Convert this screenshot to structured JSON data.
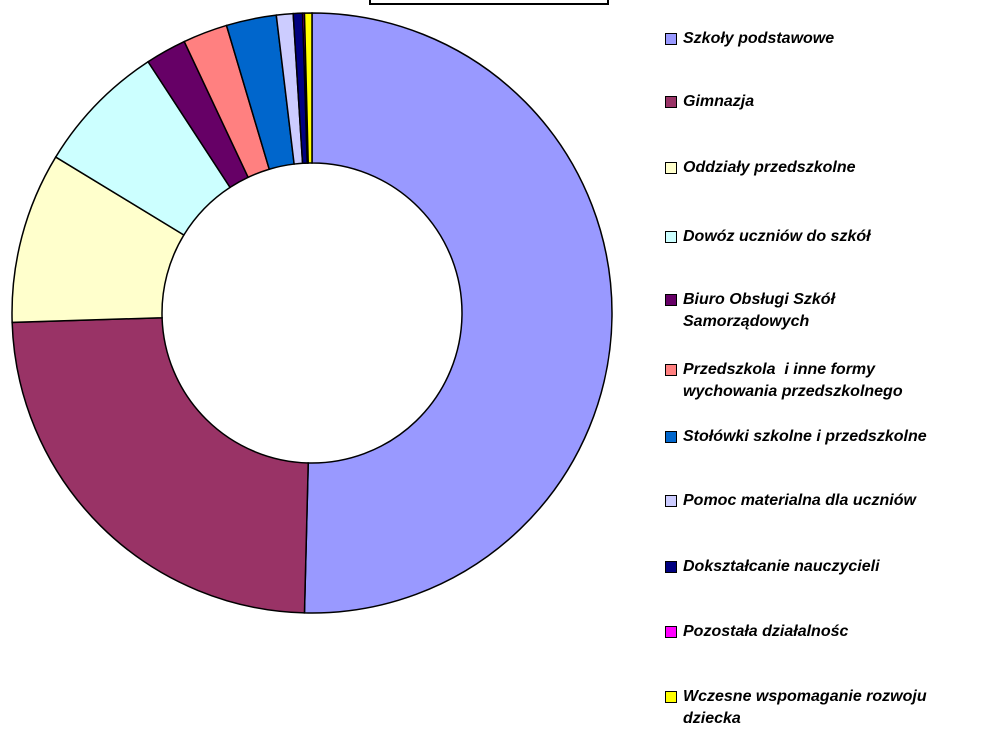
{
  "chart_data": {
    "type": "donut",
    "categories": [
      "Szkoły podstawowe",
      "Gimnazja",
      "Oddziały przedszkolne",
      "Dowóz uczniów do szkół",
      "Biuro Obsługi Szkół\nSamorządowych",
      "Przedszkola  i inne formy\nwychowania przedszkolnego",
      "Stołówki szkolne i przedszkolne",
      "Pomoc materialna dla uczniów",
      "Dokształcanie nauczycieli",
      "Pozostała działalnośc",
      "Wczesne wspomaganie rozwoju\ndziecka"
    ],
    "values": [
      50.4,
      24.1,
      9.2,
      7.1,
      2.2,
      2.4,
      2.7,
      0.9,
      0.5,
      0.1,
      0.4
    ],
    "colors": [
      "#9999ff",
      "#993366",
      "#ffffcc",
      "#ccffff",
      "#660066",
      "#ff8080",
      "#0066cc",
      "#ccccff",
      "#000080",
      "#ff00ff",
      "#ffff00"
    ],
    "legend": "right"
  }
}
